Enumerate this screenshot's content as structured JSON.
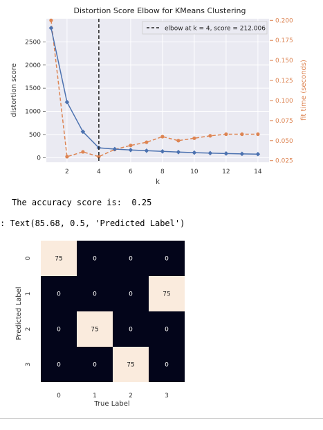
{
  "elbow_chart": {
    "title": "Distortion Score Elbow for KMeans Clustering",
    "xlabel": "k",
    "ylabel_left": "distortion score",
    "ylabel_right": "fit time (seconds)",
    "legend_label": "elbow at k = 4, score = 212.006",
    "left_ticks": [
      "0",
      "500",
      "1000",
      "1500",
      "2000",
      "2500"
    ],
    "right_ticks": [
      "0.025",
      "0.050",
      "0.075",
      "0.100",
      "0.125",
      "0.150",
      "0.175",
      "0.200"
    ],
    "x_ticks": [
      "2",
      "4",
      "6",
      "8",
      "10",
      "12",
      "14"
    ],
    "colors": {
      "score": "#4c72b0",
      "time": "#dd8452",
      "elbow": "#222222",
      "grid": "#ffffff",
      "bg": "#eaeaf2"
    }
  },
  "output": {
    "accuracy_line": "The accuracy score is:  0.25",
    "text_repr": ": Text(85.68, 0.5, 'Predicted Label')"
  },
  "heatmap": {
    "xlabel": "True Label",
    "ylabel": "Predicted Label",
    "x_ticks": [
      "0",
      "1",
      "2",
      "3"
    ],
    "y_ticks": [
      "0",
      "1",
      "2",
      "3"
    ],
    "cell_labels": [
      [
        "75",
        "0",
        "0",
        "0"
      ],
      [
        "0",
        "0",
        "0",
        "75"
      ],
      [
        "0",
        "75",
        "0",
        "0"
      ],
      [
        "0",
        "0",
        "75",
        "0"
      ]
    ]
  },
  "chart_data": [
    {
      "type": "line",
      "title": "Distortion Score Elbow for KMeans Clustering",
      "xlabel": "k",
      "ylabel": "distortion score",
      "y2label": "fit time (seconds)",
      "x": [
        1,
        2,
        3,
        4,
        5,
        6,
        7,
        8,
        9,
        10,
        11,
        12,
        13,
        14
      ],
      "series": [
        {
          "values": [
            2800,
            1200,
            560,
            212,
            185,
            165,
            150,
            135,
            120,
            108,
            98,
            90,
            82,
            76
          ],
          "axis": "left"
        },
        {
          "values": [
            0.2,
            0.03,
            0.036,
            0.03,
            0.039,
            0.044,
            0.048,
            0.055,
            0.05,
            0.053,
            0.056,
            0.058,
            0.058,
            0.058
          ],
          "axis": "right"
        }
      ],
      "ylim": [
        -100,
        3000
      ],
      "y2lim": [
        0.023,
        0.202
      ],
      "xlim": [
        0.7,
        14.7
      ],
      "elbow_k": 4,
      "elbow_score": 212.006,
      "grid": true,
      "legend_position": "top-right"
    },
    {
      "type": "heatmap",
      "xlabel": "True Label",
      "ylabel": "Predicted Label",
      "x": [
        "0",
        "1",
        "2",
        "3"
      ],
      "y": [
        "0",
        "1",
        "2",
        "3"
      ],
      "values": [
        [
          75,
          0,
          0,
          0
        ],
        [
          0,
          0,
          0,
          75
        ],
        [
          0,
          75,
          0,
          0
        ],
        [
          0,
          0,
          75,
          0
        ]
      ]
    }
  ]
}
